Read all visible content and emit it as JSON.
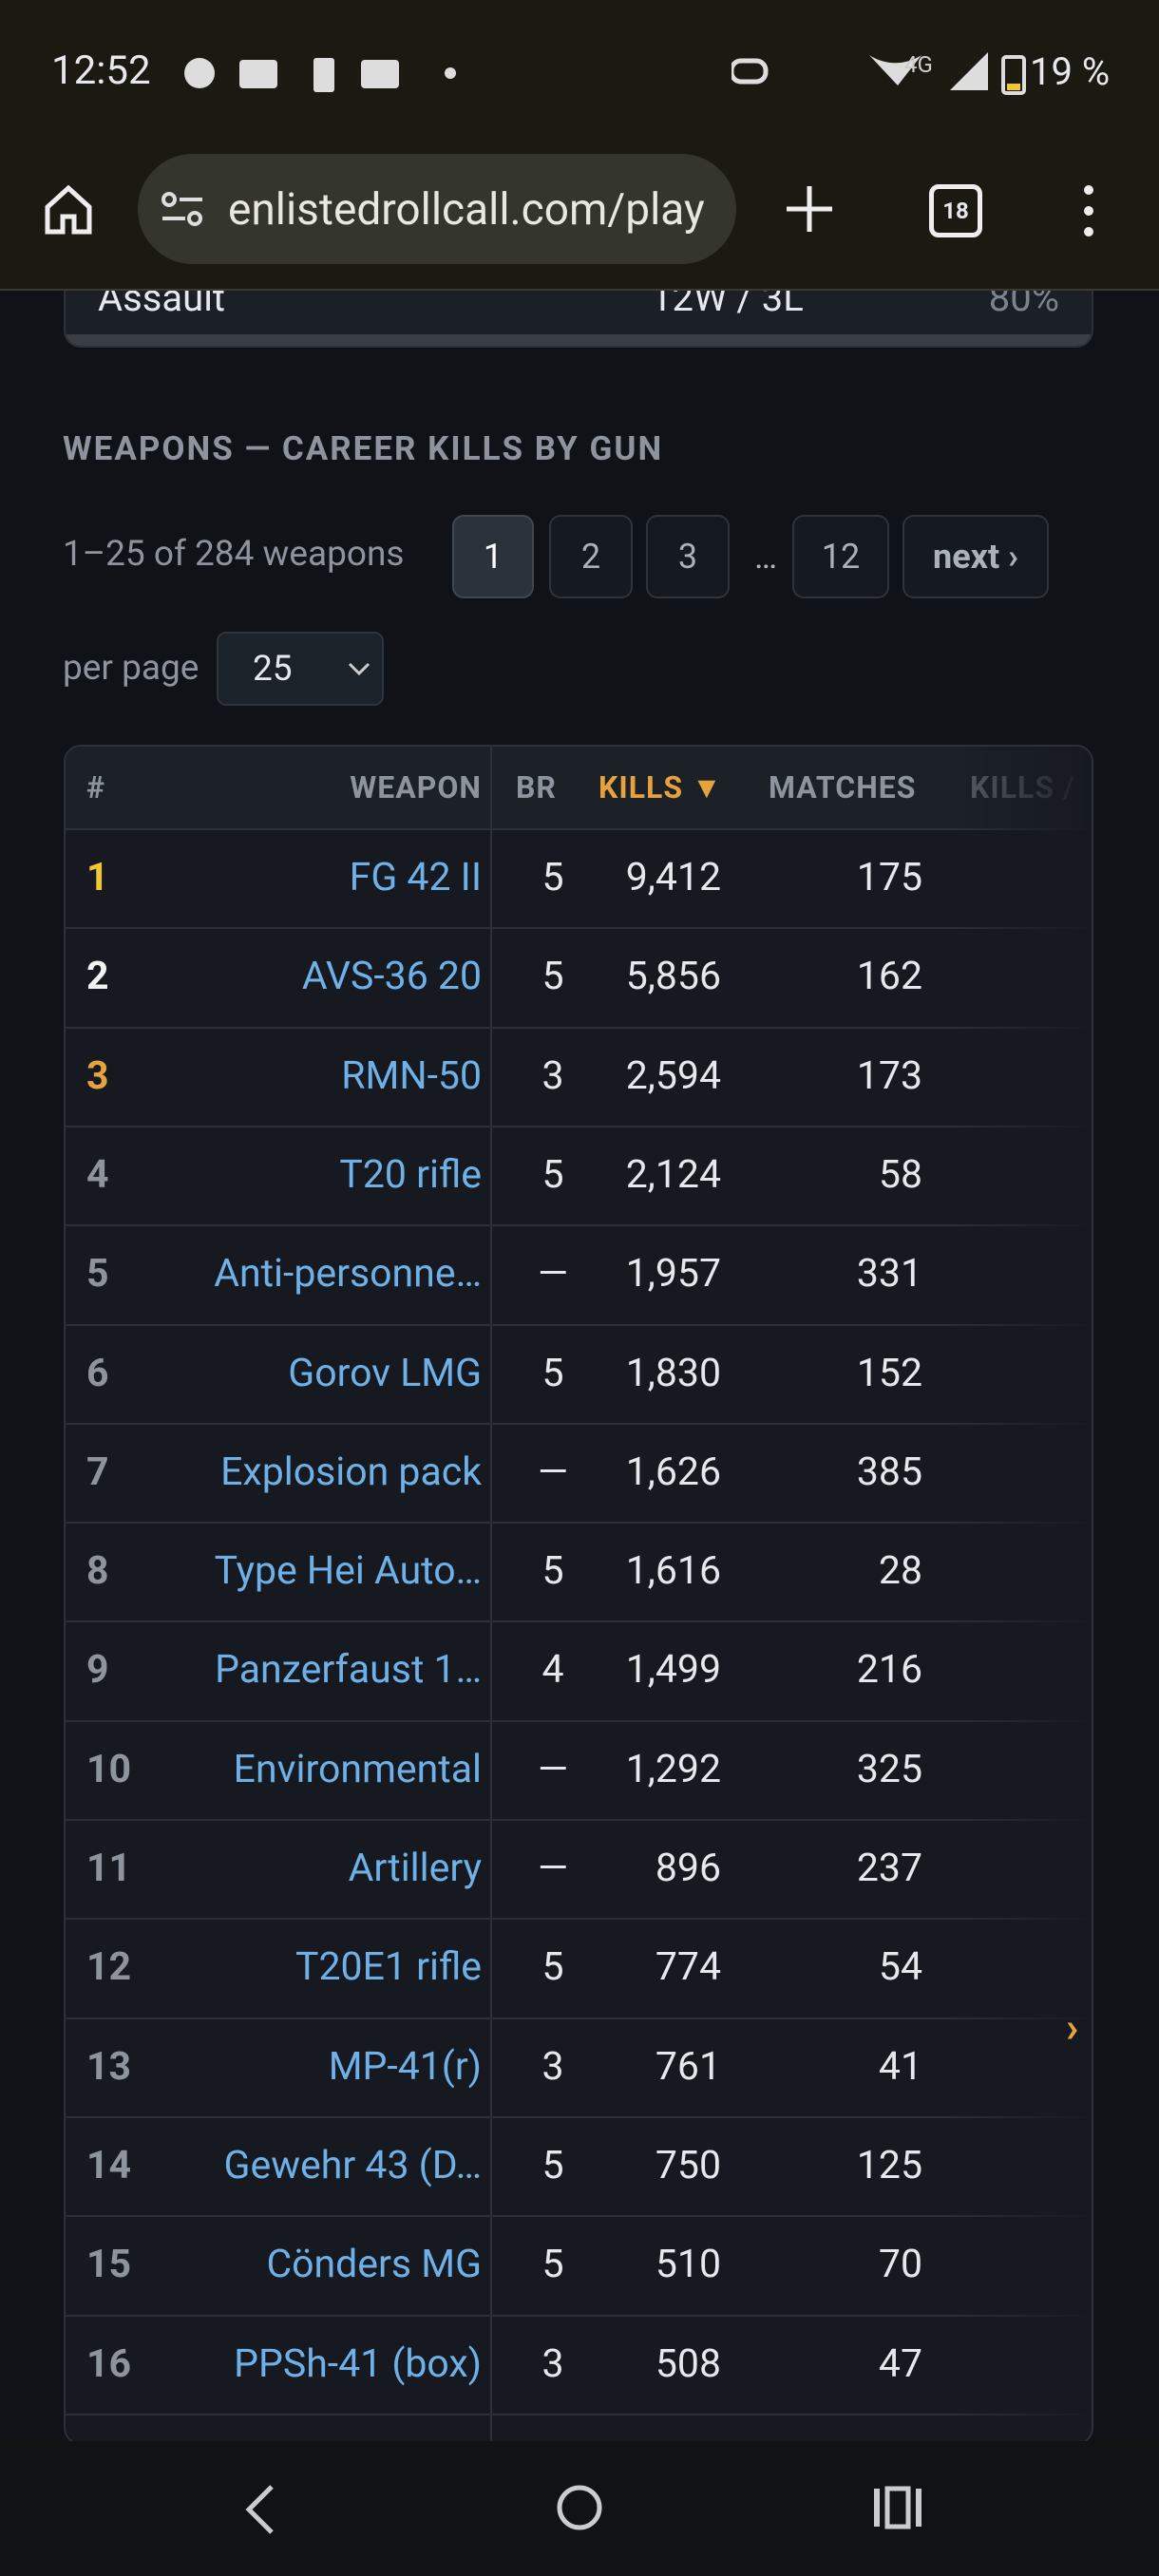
{
  "status_bar": {
    "time": "12:52",
    "network": "4G",
    "battery": "19 %"
  },
  "browser": {
    "url": "enlistedrollcall.com/play",
    "tabs": "18"
  },
  "previous_row": {
    "name": "Assault",
    "record": "12W / 3L",
    "rate": "80%"
  },
  "section": {
    "title": "WEAPONS — CAREER KILLS BY GUN",
    "count": "1–25 of 284 weapons",
    "pages": [
      "1",
      "2",
      "3",
      "…",
      "12",
      "next ›"
    ],
    "per_page_label": "per page",
    "per_page": "25"
  },
  "table": {
    "headers": [
      "#",
      "WEAPON",
      "BR",
      "KILLS ▼",
      "MATCHES",
      "KILLS /"
    ],
    "rows": [
      [
        "1",
        "FG 42 II",
        "5",
        "9,412",
        "175"
      ],
      [
        "2",
        "AVS-36 20",
        "5",
        "5,856",
        "162"
      ],
      [
        "3",
        "RMN-50",
        "3",
        "2,594",
        "173"
      ],
      [
        "4",
        "T20 rifle",
        "5",
        "2,124",
        "58"
      ],
      [
        "5",
        "Anti-personne…",
        "—",
        "1,957",
        "331"
      ],
      [
        "6",
        "Gorov LMG",
        "5",
        "1,830",
        "152"
      ],
      [
        "7",
        "Explosion pack",
        "—",
        "1,626",
        "385"
      ],
      [
        "8",
        "Type Hei Auto…",
        "5",
        "1,616",
        "28"
      ],
      [
        "9",
        "Panzerfaust 1…",
        "4",
        "1,499",
        "216"
      ],
      [
        "10",
        "Environmental",
        "—",
        "1,292",
        "325"
      ],
      [
        "11",
        "Artillery",
        "—",
        "896",
        "237"
      ],
      [
        "12",
        "T20E1 rifle",
        "5",
        "774",
        "54"
      ],
      [
        "13",
        "MP-41(r)",
        "3",
        "761",
        "41"
      ],
      [
        "14",
        "Gewehr 43 (D…",
        "5",
        "750",
        "125"
      ],
      [
        "15",
        "Cönders MG",
        "5",
        "510",
        "70"
      ],
      [
        "16",
        "PPSh-41 (box)",
        "3",
        "508",
        "47"
      ]
    ],
    "scroll_hint": "›"
  }
}
